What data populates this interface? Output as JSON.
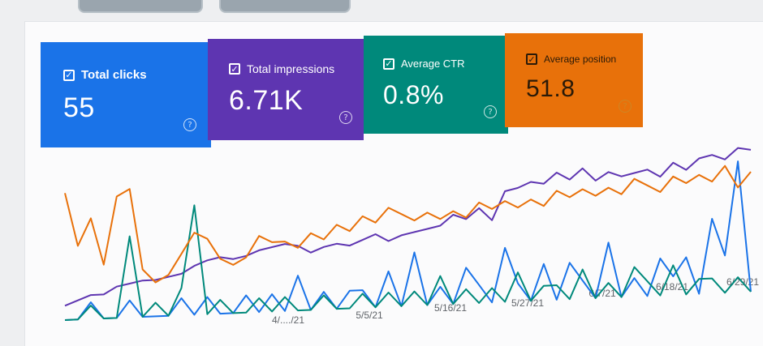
{
  "metrics": [
    {
      "label": "Total clicks",
      "value": "55",
      "color": "#1a73e8"
    },
    {
      "label": "Total impressions",
      "value": "6.71K",
      "color": "#5e35b1"
    },
    {
      "label": "Average CTR",
      "value": "0.8%",
      "color": "#00897b"
    },
    {
      "label": "Average position",
      "value": "51.8",
      "color": "#e8710a"
    }
  ],
  "help_glyph": "?",
  "check_glyph": "✓",
  "chart_data": {
    "type": "line",
    "x_tick_labels": [
      "4/..../21",
      "5/5/21",
      "5/16/21",
      "5/27/21",
      "6/7/21",
      "6/18/21",
      "6/29/21"
    ],
    "series": [
      {
        "color": "#1a73e8",
        "values": [
          0,
          0,
          1,
          0,
          0,
          1,
          0,
          0,
          0,
          1,
          0,
          1,
          0,
          0,
          1,
          0,
          1,
          0,
          2,
          0,
          1,
          0,
          1,
          1,
          0,
          2,
          0,
          3,
          0,
          1,
          0,
          2,
          1,
          0,
          3,
          1,
          0,
          2,
          0,
          2,
          1,
          0,
          3,
          0,
          1,
          0,
          2,
          1,
          2,
          0,
          4,
          2,
          7,
          0
        ]
      },
      {
        "color": "#5e35b1",
        "values": [
          60,
          80,
          100,
          100,
          130,
          140,
          150,
          150,
          160,
          170,
          200,
          220,
          230,
          220,
          230,
          250,
          260,
          270,
          260,
          230,
          250,
          260,
          250,
          270,
          290,
          260,
          280,
          290,
          300,
          310,
          350,
          330,
          370,
          320,
          430,
          440,
          460,
          450,
          490,
          460,
          500,
          450,
          480,
          460,
          470,
          480,
          450,
          500,
          470,
          510,
          520,
          500,
          540,
          530
        ]
      },
      {
        "color": "#00897b",
        "values": [
          0,
          0,
          1,
          0,
          0,
          6,
          0,
          1,
          0,
          2,
          8,
          0,
          1,
          0,
          0,
          1,
          0,
          1,
          0,
          0,
          1,
          0,
          0,
          1,
          0,
          1,
          0,
          1,
          0,
          2,
          0,
          1,
          0,
          1,
          0,
          2,
          0,
          1,
          1,
          0,
          2,
          0,
          1,
          0,
          2,
          1,
          0,
          2,
          0,
          1,
          1,
          0,
          1,
          0
        ]
      },
      {
        "color": "#e8710a",
        "values": [
          95,
          55,
          75,
          40,
          90,
          95,
          35,
          25,
          30,
          45,
          60,
          55,
          40,
          35,
          40,
          55,
          50,
          50,
          45,
          55,
          50,
          60,
          55,
          65,
          60,
          70,
          65,
          60,
          65,
          60,
          65,
          60,
          70,
          65,
          70,
          65,
          70,
          65,
          75,
          70,
          75,
          70,
          75,
          70,
          80,
          75,
          70,
          80,
          75,
          80,
          75,
          85,
          70,
          80
        ]
      }
    ]
  }
}
